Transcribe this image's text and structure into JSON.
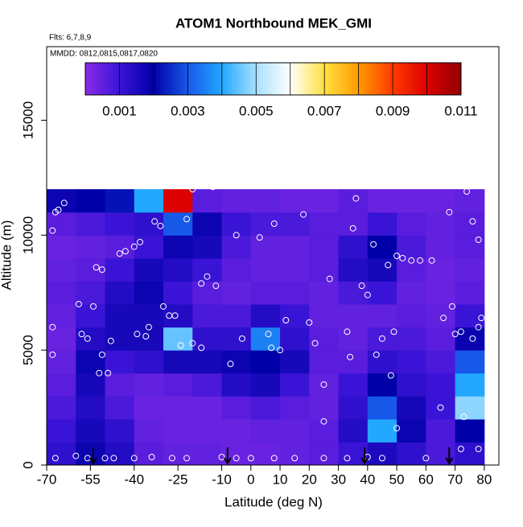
{
  "chart_data": {
    "type": "heatmap",
    "title": "ATOM1 Northbound MEK_GMI",
    "flights_note": "Flts: 6,7,8,9",
    "dates_note": "MMDD: 0812,0815,0817,0820",
    "xlabel": "Latitude (deg N)",
    "ylabel": "Altitude (m)",
    "xlim": [
      -70,
      85
    ],
    "ylim": [
      0,
      18200
    ],
    "xticks": [
      -70,
      -55,
      -40,
      -25,
      -10,
      0,
      10,
      20,
      30,
      40,
      50,
      60,
      70,
      80
    ],
    "yticks": [
      0,
      5000,
      10000,
      15000
    ],
    "x": [
      -65,
      -55,
      -45,
      -35,
      -25,
      -15,
      -5,
      5,
      15,
      25,
      35,
      45,
      55,
      65,
      75
    ],
    "y": [
      500,
      1500,
      2500,
      3500,
      4500,
      5500,
      6500,
      7500,
      8500,
      9500,
      10500,
      11500
    ],
    "cell_width": 10,
    "cell_height": 1000,
    "values": [
      [
        0.0012,
        0.0018,
        0.0014,
        0.0006,
        0.0005,
        0.0005,
        0.0004,
        0.0004,
        0.0005,
        0.0006,
        0.001,
        0.0015,
        0.0012,
        0.0008,
        0.0012
      ],
      [
        0.001,
        0.0016,
        0.0012,
        0.0005,
        0.0004,
        0.0004,
        0.0004,
        0.0005,
        0.0005,
        0.0006,
        0.0014,
        0.004,
        0.0018,
        0.0008,
        0.002
      ],
      [
        0.0008,
        0.0014,
        0.0008,
        0.0004,
        0.0004,
        0.0004,
        0.0006,
        0.0008,
        0.0006,
        0.0005,
        0.0012,
        0.003,
        0.0016,
        0.001,
        0.0048
      ],
      [
        0.0006,
        0.0016,
        0.0006,
        0.0005,
        0.0006,
        0.0008,
        0.0014,
        0.0016,
        0.001,
        0.0005,
        0.001,
        0.002,
        0.0012,
        0.001,
        0.004
      ],
      [
        0.0005,
        0.0018,
        0.001,
        0.0012,
        0.0016,
        0.0016,
        0.0018,
        0.002,
        0.0016,
        0.0006,
        0.0006,
        0.0012,
        0.001,
        0.0008,
        0.003
      ],
      [
        0.0004,
        0.0014,
        0.0016,
        0.0016,
        0.0045,
        0.0012,
        0.0012,
        0.0035,
        0.0012,
        0.0006,
        0.0005,
        0.0008,
        0.0008,
        0.0006,
        0.0018
      ],
      [
        0.0005,
        0.001,
        0.0016,
        0.0016,
        0.0014,
        0.0008,
        0.0008,
        0.0014,
        0.001,
        0.0005,
        0.0005,
        0.0005,
        0.0006,
        0.0005,
        0.001
      ],
      [
        0.0006,
        0.0008,
        0.0014,
        0.0018,
        0.001,
        0.0006,
        0.0005,
        0.0006,
        0.0006,
        0.0005,
        0.0008,
        0.001,
        0.0005,
        0.0004,
        0.0006
      ],
      [
        0.0005,
        0.0006,
        0.001,
        0.0016,
        0.0014,
        0.001,
        0.0006,
        0.0005,
        0.0005,
        0.0006,
        0.0014,
        0.0016,
        0.0006,
        0.0004,
        0.0005
      ],
      [
        0.0004,
        0.0005,
        0.0006,
        0.001,
        0.0018,
        0.0016,
        0.0008,
        0.0005,
        0.0005,
        0.0006,
        0.0012,
        0.002,
        0.0008,
        0.0005,
        0.0006
      ],
      [
        0.0006,
        0.0008,
        0.001,
        0.0012,
        0.003,
        0.0018,
        0.001,
        0.0008,
        0.0008,
        0.0006,
        0.0006,
        0.001,
        0.0006,
        0.0005,
        0.0006
      ],
      [
        0.0018,
        0.002,
        0.0022,
        0.004,
        0.01,
        0.0006,
        0.0005,
        0.0005,
        0.0004,
        0.0004,
        0.0006,
        0.0004,
        0.0004,
        0.0004,
        0.0005
      ]
    ],
    "colormap": {
      "levels": [
        0,
        0.001,
        0.002,
        0.003,
        0.004,
        0.005,
        0.006,
        0.007,
        0.008,
        0.009,
        0.01,
        0.011
      ],
      "colors": [
        "#8a2be8",
        "#3a14d6",
        "#0000a8",
        "#1858e8",
        "#22a8ff",
        "#a8e0ff",
        "#ffffff",
        "#ffe040",
        "#ff9a00",
        "#ff3a00",
        "#dd0000",
        "#900000"
      ]
    },
    "colorbar_lim": [
      0,
      0.011
    ],
    "colorbar_ticks": [
      0.001,
      0.003,
      0.005,
      0.007,
      0.009,
      0.011
    ],
    "samples": {
      "x": [
        -68,
        -68,
        -68,
        -67,
        -66,
        -64,
        -59,
        -58,
        -56,
        -54,
        -53,
        -51,
        -51,
        -52,
        -49,
        -48,
        -45,
        -43,
        -40,
        -38,
        -36,
        -35,
        -33,
        -31,
        -30,
        -28,
        -26,
        -22,
        -20,
        -15,
        -17,
        -12,
        -13,
        -67,
        -60,
        -56,
        -50,
        -47,
        -40,
        -34,
        -27,
        -22,
        -10,
        -5,
        0,
        8,
        15,
        25,
        33,
        40,
        45,
        60,
        72,
        78,
        -5,
        3,
        8,
        12,
        18,
        20,
        22,
        25,
        25,
        27,
        33,
        34,
        35,
        36,
        38,
        40,
        42,
        43,
        45,
        47,
        48,
        49,
        50,
        50,
        52,
        55,
        58,
        62,
        65,
        66,
        68,
        69,
        70,
        72,
        73,
        74,
        76,
        78,
        78,
        79,
        76,
        -3,
        6,
        7,
        10,
        -7,
        -24,
        -20,
        -17,
        -39
      ],
      "y": [
        10200,
        6000,
        4800,
        11000,
        11100,
        11400,
        7000,
        5700,
        5500,
        6900,
        8600,
        8500,
        4800,
        4000,
        4000,
        5400,
        9200,
        9300,
        9500,
        9700,
        5600,
        6000,
        10600,
        10400,
        6900,
        6500,
        6500,
        10700,
        12000,
        8200,
        7900,
        7800,
        12100,
        300,
        400,
        300,
        300,
        300,
        300,
        350,
        300,
        300,
        350,
        300,
        300,
        300,
        300,
        300,
        300,
        350,
        300,
        300,
        700,
        700,
        10000,
        9900,
        10500,
        6300,
        10900,
        6200,
        5300,
        3500,
        1900,
        8100,
        5800,
        4700,
        10300,
        11600,
        7800,
        7400,
        9600,
        4800,
        5500,
        8700,
        3900,
        5800,
        1600,
        9100,
        9000,
        8900,
        8900,
        8900,
        2500,
        6400,
        11000,
        6900,
        5700,
        5800,
        2100,
        11900,
        10600,
        9800,
        6000,
        6400,
        5500,
        5500,
        5700,
        5100,
        5000,
        4400,
        5200,
        5300,
        5100,
        5700
      ],
      "color": "#ffffff"
    },
    "arrows_x": [
      -54,
      -8,
      39,
      68
    ]
  }
}
